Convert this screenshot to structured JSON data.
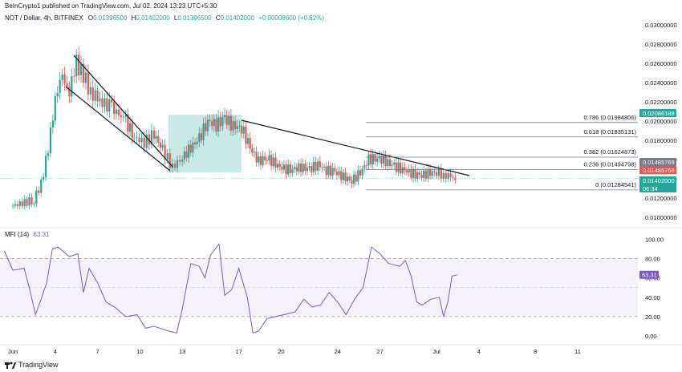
{
  "header": {
    "publisher": "BeInCrypto1 published on TradingView.com, Jul 02, 2024 13:23 UTC+5:30"
  },
  "ohlc": {
    "symbol": "NOT / Dollar, 4h, BITFINEX",
    "o_label": "O",
    "o": "0.01396500",
    "h_label": "H",
    "h": "0.01402000",
    "l_label": "L",
    "l": "0.01396500",
    "c_label": "C",
    "c": "0.01402000",
    "change": "+0.00008600 (+0.62%)"
  },
  "price_axis": {
    "ticks": [
      "0.03000000",
      "0.02800000",
      "0.02600000",
      "0.02400000",
      "0.02200000",
      "0.02000000",
      "0.01800000",
      "0.01600000",
      "0.01400000",
      "0.01200000",
      "0.01000000"
    ]
  },
  "price_tags": [
    {
      "text": "0.02086188",
      "color": "#26a69a"
    },
    {
      "text": "0.01485769",
      "color": "#787b86"
    },
    {
      "text": "0.01485768",
      "color": "#ef5350"
    },
    {
      "text": "0.01402000",
      "color": "#26a69a",
      "sub": "06:34"
    }
  ],
  "fib_levels": [
    {
      "label": "0.786 (0.01984806)",
      "price": 0.01984806
    },
    {
      "label": "0.618 (0.01835131)",
      "price": 0.01835131
    },
    {
      "label": "0.382 (0.01624873)",
      "price": 0.01624873
    },
    {
      "label": "0.236 (0.01494798)",
      "price": 0.01494798
    },
    {
      "label": "0 (0.01284541)",
      "price": 0.01284541
    }
  ],
  "mfi": {
    "name": "MFI (14)",
    "value": "63.31",
    "tag": "63.31",
    "ticks": [
      "100.00",
      "80.00",
      "60.00",
      "40.00",
      "20.00",
      "0.00"
    ],
    "color": "#7e57c2"
  },
  "x_axis": {
    "labels": [
      "Jun",
      "4",
      "7",
      "10",
      "13",
      "17",
      "20",
      "24",
      "27",
      "Jul",
      "4",
      "8",
      "11"
    ]
  },
  "footer": {
    "brand": "TradingView"
  },
  "colors": {
    "up": "#26a69a",
    "down": "#ef5350",
    "mfi": "#7e57c2",
    "band": "#ede7f6",
    "box": "#b2dfdb"
  },
  "chart_data": {
    "type": "candlestick",
    "title": "NOT / Dollar, 4h, BITFINEX",
    "y_range": [
      0.0095,
      0.0305
    ],
    "x_range": [
      "May 31",
      "Jul 12"
    ],
    "price_series": [
      {
        "x": "May 31",
        "close": 0.0112
      },
      {
        "x": "Jun 1",
        "close": 0.0125
      },
      {
        "x": "Jun 2",
        "close": 0.0172
      },
      {
        "x": "Jun 3",
        "close": 0.0238
      },
      {
        "x": "Jun 4",
        "close": 0.0248
      },
      {
        "x": "Jun 5",
        "close": 0.0255
      },
      {
        "x": "Jun 6",
        "close": 0.0223
      },
      {
        "x": "Jun 7",
        "close": 0.0212
      },
      {
        "x": "Jun 8",
        "close": 0.0196
      },
      {
        "x": "Jun 9",
        "close": 0.0182
      },
      {
        "x": "Jun 10",
        "close": 0.018
      },
      {
        "x": "Jun 11",
        "close": 0.016
      },
      {
        "x": "Jun 12",
        "close": 0.0167
      },
      {
        "x": "Jun 13",
        "close": 0.0183
      },
      {
        "x": "Jun 14",
        "close": 0.0198
      },
      {
        "x": "Jun 15",
        "close": 0.0205
      },
      {
        "x": "Jun 16",
        "close": 0.02
      },
      {
        "x": "Jun 17",
        "close": 0.0171
      },
      {
        "x": "Jun 18",
        "close": 0.0155
      },
      {
        "x": "Jun 19",
        "close": 0.0154
      },
      {
        "x": "Jun 20",
        "close": 0.015
      },
      {
        "x": "Jun 21",
        "close": 0.015
      },
      {
        "x": "Jun 22",
        "close": 0.0152
      },
      {
        "x": "Jun 23",
        "close": 0.0146
      },
      {
        "x": "Jun 24",
        "close": 0.0133
      },
      {
        "x": "Jun 25",
        "close": 0.0158
      },
      {
        "x": "Jun 26",
        "close": 0.016
      },
      {
        "x": "Jun 27",
        "close": 0.0152
      },
      {
        "x": "Jun 28",
        "close": 0.0146
      },
      {
        "x": "Jun 29",
        "close": 0.0142
      },
      {
        "x": "Jun 30",
        "close": 0.0146
      },
      {
        "x": "Jul 1",
        "close": 0.0145
      },
      {
        "x": "Jul 2",
        "close": 0.014
      }
    ],
    "mfi_series": [
      {
        "x": "May 31",
        "y": 88
      },
      {
        "x": "Jun 2",
        "y": 22
      },
      {
        "x": "Jun 3",
        "y": 92
      },
      {
        "x": "Jun 5",
        "y": 85
      },
      {
        "x": "Jun 6",
        "y": 55
      },
      {
        "x": "Jun 7",
        "y": 35
      },
      {
        "x": "Jun 9",
        "y": 22
      },
      {
        "x": "Jun 10",
        "y": 8
      },
      {
        "x": "Jun 12",
        "y": 5
      },
      {
        "x": "Jun 13",
        "y": 75
      },
      {
        "x": "Jun 14",
        "y": 72
      },
      {
        "x": "Jun 15",
        "y": 95
      },
      {
        "x": "Jun 16",
        "y": 40
      },
      {
        "x": "Jun 17",
        "y": 3
      },
      {
        "x": "Jun 18",
        "y": 18
      },
      {
        "x": "Jun 20",
        "y": 25
      },
      {
        "x": "Jun 22",
        "y": 32
      },
      {
        "x": "Jun 23",
        "y": 35
      },
      {
        "x": "Jun 24",
        "y": 25
      },
      {
        "x": "Jun 25",
        "y": 35
      },
      {
        "x": "Jun 26",
        "y": 92
      },
      {
        "x": "Jun 27",
        "y": 75
      },
      {
        "x": "Jun 28",
        "y": 72
      },
      {
        "x": "Jun 29",
        "y": 35
      },
      {
        "x": "Jun 30",
        "y": 32
      },
      {
        "x": "Jul 1",
        "y": 40
      },
      {
        "x": "Jul 2",
        "y": 63.31
      }
    ]
  }
}
